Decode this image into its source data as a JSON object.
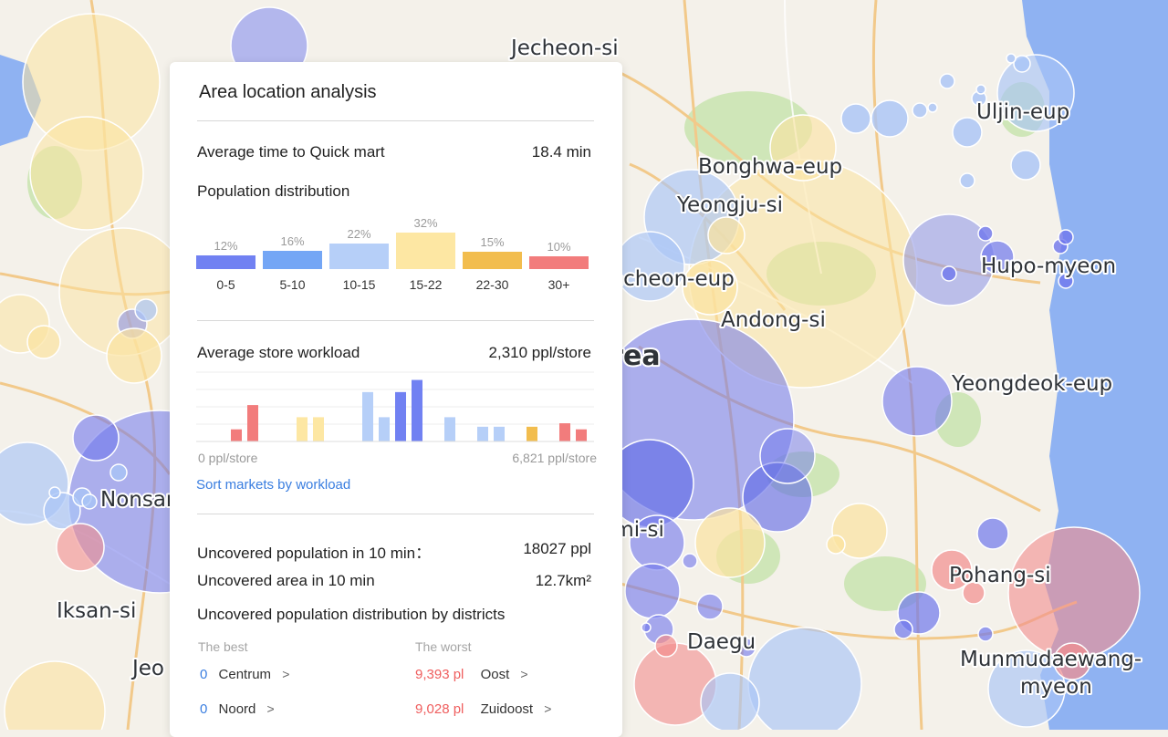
{
  "map": {
    "cities": [
      {
        "name": "Jecheon-si"
      },
      {
        "name": "Uljin-eup"
      },
      {
        "name": "Bonghwa-eup"
      },
      {
        "name": "Yeongju-si"
      },
      {
        "name": "Hupo-myeon"
      },
      {
        "name": "Yecheon-eup"
      },
      {
        "name": "Andong-si"
      },
      {
        "name": "Area"
      },
      {
        "name": "Yeongdeok-eup"
      },
      {
        "name": "Nonsan"
      },
      {
        "name": "Gumi-si"
      },
      {
        "name": "Pohang-si"
      },
      {
        "name": "Iksan-si"
      },
      {
        "name": "Daegu"
      },
      {
        "name": "Munmudaewang-"
      },
      {
        "name": "myeon"
      },
      {
        "name": "Jeo"
      }
    ],
    "colors": {
      "land": "#f4f1ea",
      "sea": "#8fb2f2",
      "park": "#cfe6b8",
      "road": "#f2c98a"
    }
  },
  "panel": {
    "title": "Area location analysis",
    "avg_time": {
      "label": "Average time to Quick mart",
      "value": "18.4 min"
    },
    "population": {
      "title": "Population distribution",
      "buckets": [
        {
          "label": "0-5",
          "pct": "12%",
          "value": 12,
          "color": "#7181f2"
        },
        {
          "label": "5-10",
          "pct": "16%",
          "value": 16,
          "color": "#74a6f5"
        },
        {
          "label": "10-15",
          "pct": "22%",
          "value": 22,
          "color": "#b6cff8"
        },
        {
          "label": "15-22",
          "pct": "32%",
          "value": 32,
          "color": "#fde7a3"
        },
        {
          "label": "22-30",
          "pct": "15%",
          "value": 15,
          "color": "#f2bd4e"
        },
        {
          "label": "30+",
          "pct": "10%",
          "value": 10,
          "color": "#f27c7c"
        }
      ]
    },
    "workload": {
      "label": "Average store workload",
      "value": "2,310 ppl/store",
      "axis_min": "0 ppl/store",
      "axis_max": "6,821 ppl/store",
      "sort_link": "Sort markets by workload",
      "chart_data": {
        "type": "bar",
        "values": [
          0,
          0,
          14,
          42,
          0,
          0,
          28,
          28,
          0,
          0,
          57,
          28,
          57,
          71,
          0,
          28,
          0,
          17,
          17,
          0,
          17,
          0,
          21,
          14
        ],
        "colors": [
          "#f27c7c",
          "#f27c7c",
          "#f27c7c",
          "#f27c7c",
          "#fde7a3",
          "#fde7a3",
          "#fde7a3",
          "#fde7a3",
          "#b6cff8",
          "#b6cff8",
          "#b6cff8",
          "#b6cff8",
          "#7181f2",
          "#7181f2",
          "#b6cff8",
          "#b6cff8",
          "#b6cff8",
          "#b6cff8",
          "#b6cff8",
          "#f2bd4e",
          "#f2bd4e",
          "#f27c7c",
          "#f27c7c",
          "#f27c7c"
        ],
        "ylim": [
          0,
          80
        ]
      }
    },
    "uncovered_pop": {
      "label": "Uncovered population in 10 min：",
      "value": "18027 ppl"
    },
    "uncovered_area": {
      "label": "Uncovered area in 10 min",
      "value": "12.7km²"
    },
    "districts": {
      "title": "Uncovered population distribution by districts",
      "best_header": "The best",
      "worst_header": "The worst",
      "best": [
        {
          "value": "0",
          "name": "Centrum"
        },
        {
          "value": "0",
          "name": "Noord"
        }
      ],
      "worst": [
        {
          "value": "9,393 pl",
          "name": "Oost"
        },
        {
          "value": "9,028 pl",
          "name": "Zuidoost"
        }
      ]
    }
  }
}
